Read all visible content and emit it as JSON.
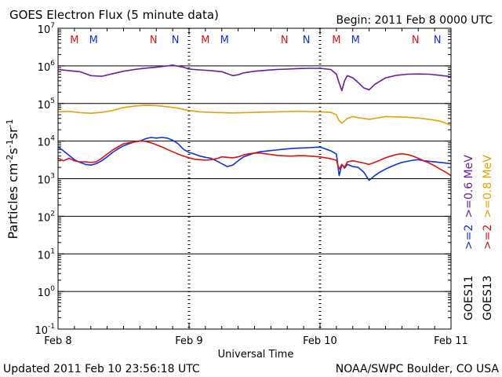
{
  "header": {
    "title": "GOES Electron Flux (5 minute data)",
    "begin": "Begin: 2011 Feb 8 0000 UTC"
  },
  "footer": {
    "updated": "Updated 2011 Feb 10 23:56:18 UTC",
    "source": "NOAA/SWPC Boulder, CO USA"
  },
  "colors": {
    "goes11_gt06": "#6a1aa0",
    "goes13_gt08": "#e8a000",
    "goes11_gt2": "#1030e0",
    "goes13_gt2": "#e01010",
    "marker_m": "#e01010",
    "marker_n": "#1030e0"
  },
  "chart_data": {
    "type": "line",
    "title": "GOES Electron Flux (5 minute data)",
    "xlabel": "Universal Time",
    "ylabel": "Particles cm-2s-1sr-1",
    "yscale": "log",
    "ylim": [
      0.1,
      10000000
    ],
    "xlim": [
      0,
      72
    ],
    "x_unit": "hours since 2011 Feb 8 0000 UTC",
    "x_ticks": [
      {
        "value": 0,
        "label": "Feb 8"
      },
      {
        "value": 24,
        "label": "Feb 9"
      },
      {
        "value": 48,
        "label": "Feb 10"
      },
      {
        "value": 72,
        "label": "Feb 11"
      }
    ],
    "y_ticks": [
      {
        "base": "10",
        "exp": "7"
      },
      {
        "base": "10",
        "exp": "6"
      },
      {
        "base": "10",
        "exp": "5"
      },
      {
        "base": "10",
        "exp": "4"
      },
      {
        "base": "10",
        "exp": "3"
      },
      {
        "base": "10",
        "exp": "2"
      },
      {
        "base": "10",
        "exp": "1"
      },
      {
        "base": "10",
        "exp": "0"
      },
      {
        "base": "10",
        "exp": "-1"
      }
    ],
    "threshold": 1000,
    "grid": true,
    "legend": {
      "placement": "right",
      "columns": [
        {
          "satellite": "GOES11",
          "items": [
            {
              "text": ">=2",
              "color": "#1030e0"
            },
            {
              "text": ">=0.6 MeV",
              "color": "#6a1aa0"
            }
          ]
        },
        {
          "satellite": "GOES13",
          "items": [
            {
              "text": ">=2",
              "color": "#e01010"
            },
            {
              "text": ">=0.8 MeV",
              "color": "#e8a000"
            }
          ]
        }
      ]
    },
    "markers": [
      {
        "text": "M",
        "x": 3.0,
        "color": "#e01010"
      },
      {
        "text": "M",
        "x": 6.5,
        "color": "#1030e0"
      },
      {
        "text": "N",
        "x": 17.5,
        "color": "#e01010"
      },
      {
        "text": "N",
        "x": 21.5,
        "color": "#1030e0"
      },
      {
        "text": "M",
        "x": 27.0,
        "color": "#e01010"
      },
      {
        "text": "M",
        "x": 30.5,
        "color": "#1030e0"
      },
      {
        "text": "N",
        "x": 41.5,
        "color": "#e01010"
      },
      {
        "text": "N",
        "x": 45.5,
        "color": "#1030e0"
      },
      {
        "text": "M",
        "x": 51.0,
        "color": "#e01010"
      },
      {
        "text": "M",
        "x": 54.5,
        "color": "#1030e0"
      },
      {
        "text": "N",
        "x": 65.5,
        "color": "#e01010"
      },
      {
        "text": "N",
        "x": 69.5,
        "color": "#1030e0"
      }
    ],
    "series": [
      {
        "name": "GOES11 >=0.6 MeV",
        "color": "#6a1aa0",
        "x": [
          0,
          2,
          4,
          6,
          8,
          10,
          12,
          14,
          16,
          18,
          20,
          21,
          22,
          23,
          24,
          26,
          28,
          30,
          31,
          32,
          33,
          34,
          36,
          38,
          40,
          42,
          44,
          46,
          48,
          50,
          51,
          51.5,
          52,
          52.5,
          53,
          54,
          55,
          56,
          57,
          58,
          60,
          62,
          64,
          66,
          68,
          70,
          72
        ],
        "y": [
          800000,
          750000,
          700000,
          550000,
          530000,
          620000,
          720000,
          800000,
          870000,
          920000,
          1000000,
          1050000,
          980000,
          920000,
          820000,
          780000,
          750000,
          700000,
          620000,
          550000,
          580000,
          650000,
          720000,
          760000,
          800000,
          820000,
          850000,
          860000,
          860000,
          800000,
          600000,
          350000,
          220000,
          400000,
          550000,
          480000,
          360000,
          260000,
          230000,
          320000,
          480000,
          560000,
          600000,
          610000,
          600000,
          560000,
          520000
        ]
      },
      {
        "name": "GOES13 >=0.8 MeV",
        "color": "#e8a000",
        "x": [
          0,
          2,
          4,
          6,
          8,
          10,
          12,
          14,
          16,
          18,
          20,
          22,
          24,
          26,
          28,
          30,
          32,
          34,
          36,
          38,
          40,
          42,
          44,
          46,
          48,
          50,
          51,
          51.5,
          52,
          53,
          54,
          55,
          56,
          57,
          58,
          60,
          62,
          64,
          66,
          68,
          70,
          71,
          72
        ],
        "y": [
          60000,
          62000,
          57000,
          55000,
          58000,
          65000,
          78000,
          85000,
          90000,
          88000,
          82000,
          75000,
          65000,
          60000,
          58000,
          57000,
          56000,
          57000,
          58000,
          59000,
          60000,
          61000,
          62000,
          61000,
          60000,
          58000,
          50000,
          35000,
          30000,
          40000,
          45000,
          42000,
          40000,
          38000,
          40000,
          45000,
          44000,
          43000,
          41000,
          38000,
          34000,
          30000,
          26000
        ]
      },
      {
        "name": "GOES11 >=2",
        "color": "#1030e0",
        "x": [
          0,
          1,
          2,
          3,
          4,
          5,
          6,
          7,
          8,
          9,
          10,
          11,
          12,
          13,
          14,
          15,
          16,
          17,
          18,
          19,
          20,
          21,
          22,
          23,
          24,
          25,
          26,
          27,
          28,
          29,
          30,
          31,
          32,
          33,
          34,
          35,
          36,
          37,
          38,
          39,
          40,
          41,
          42,
          43,
          44,
          45,
          46,
          47,
          48,
          49,
          50,
          51,
          51.5,
          52,
          52.5,
          53,
          54,
          55,
          56,
          57,
          58,
          59,
          60,
          61,
          62,
          63,
          64,
          65,
          66,
          67,
          68,
          69,
          70,
          71,
          72
        ],
        "y": [
          7000,
          5500,
          4200,
          3200,
          2700,
          2400,
          2300,
          2500,
          3000,
          3800,
          5000,
          6200,
          7500,
          8500,
          9500,
          10000,
          11500,
          12500,
          12000,
          12500,
          12000,
          10500,
          8500,
          6000,
          5000,
          4500,
          4000,
          3700,
          3500,
          3000,
          2500,
          2100,
          2300,
          3000,
          3800,
          4300,
          4800,
          5200,
          5400,
          5600,
          5800,
          6000,
          6200,
          6400,
          6500,
          6600,
          6700,
          6800,
          6900,
          6200,
          5500,
          4500,
          1200,
          2400,
          1900,
          2400,
          2100,
          2000,
          1500,
          900,
          1200,
          1500,
          1800,
          2100,
          2400,
          2700,
          2900,
          3100,
          3200,
          3000,
          2900,
          2800,
          2700,
          2600,
          2500
        ]
      },
      {
        "name": "GOES13 >=2",
        "color": "#e01010",
        "x": [
          0,
          1,
          2,
          3,
          4,
          5,
          6,
          7,
          8,
          9,
          10,
          11,
          12,
          13,
          14,
          15,
          16,
          17,
          18,
          19,
          20,
          21,
          22,
          23,
          24,
          25,
          26,
          27,
          28,
          29,
          30,
          31,
          32,
          33,
          34,
          35,
          36,
          37,
          38,
          39,
          40,
          41,
          42,
          43,
          44,
          45,
          46,
          47,
          48,
          49,
          50,
          51,
          51.5,
          52,
          52.5,
          53,
          54,
          55,
          56,
          57,
          58,
          59,
          60,
          61,
          62,
          63,
          64,
          65,
          66,
          67,
          68,
          69,
          70,
          71,
          72
        ],
        "y": [
          3500,
          3000,
          3500,
          3000,
          2800,
          2800,
          2700,
          2800,
          3500,
          4500,
          5800,
          7000,
          8500,
          9000,
          9500,
          10000,
          9800,
          9000,
          8000,
          7000,
          6000,
          5200,
          4500,
          4000,
          3600,
          3300,
          3200,
          3100,
          3200,
          3400,
          3800,
          3700,
          3600,
          3800,
          4300,
          4600,
          4800,
          4800,
          4600,
          4400,
          4200,
          4100,
          4000,
          4000,
          4100,
          4100,
          4000,
          3900,
          3800,
          3600,
          3400,
          3100,
          1800,
          2400,
          2000,
          2800,
          3000,
          2800,
          2600,
          2400,
          2700,
          3100,
          3600,
          4000,
          4400,
          4600,
          4400,
          4000,
          3500,
          3000,
          2600,
          2200,
          1800,
          1500,
          1200
        ]
      }
    ]
  }
}
